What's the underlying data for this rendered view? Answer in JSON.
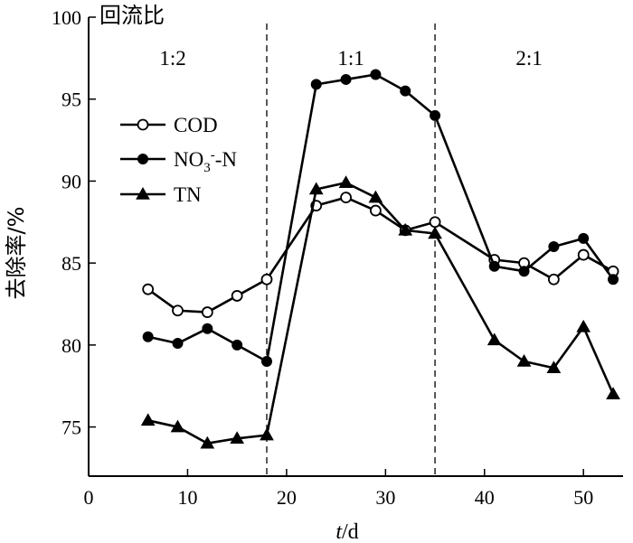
{
  "chart_data": {
    "type": "line",
    "xlabel": {
      "italic": "t",
      "rest": "/d"
    },
    "ylabel": "去除率/%",
    "annotation": "回流比",
    "xlim": [
      0,
      54
    ],
    "ylim": [
      72,
      100
    ],
    "x_ticks": [
      0,
      10,
      20,
      30,
      40,
      50
    ],
    "y_ticks": [
      75,
      80,
      85,
      90,
      95,
      100
    ],
    "grid": false,
    "legend_position": "left",
    "region_boundaries": [
      18,
      35
    ],
    "regions": [
      {
        "label": "1:2",
        "x_center": 8.5
      },
      {
        "label": "1:1",
        "x_center": 26.5
      },
      {
        "label": "2:1",
        "x_center": 44.5
      }
    ],
    "series": [
      {
        "name": "COD",
        "legend": {
          "main": "COD",
          "sub": "",
          "sup": "",
          "tail": ""
        },
        "marker": "circle-open",
        "x": [
          6,
          9,
          12,
          15,
          18,
          23,
          26,
          29,
          32,
          35,
          41,
          44,
          47,
          50,
          53
        ],
        "y": [
          83.4,
          82.1,
          82.0,
          83.0,
          84.0,
          88.5,
          89.0,
          88.2,
          87.0,
          87.5,
          85.2,
          85.0,
          84.0,
          85.5,
          84.5
        ]
      },
      {
        "name": "NO3--N",
        "legend": {
          "main": "NO",
          "sub": "3",
          "sup": "-",
          "tail": "-N"
        },
        "marker": "circle-filled",
        "x": [
          6,
          9,
          12,
          15,
          18,
          23,
          26,
          29,
          32,
          35,
          41,
          44,
          47,
          50,
          53
        ],
        "y": [
          80.5,
          80.1,
          81.0,
          80.0,
          79.0,
          95.9,
          96.2,
          96.5,
          95.5,
          94.0,
          84.8,
          84.5,
          86.0,
          86.5,
          84.0
        ]
      },
      {
        "name": "TN",
        "legend": {
          "main": "TN",
          "sub": "",
          "sup": "",
          "tail": ""
        },
        "marker": "triangle-filled",
        "x": [
          6,
          9,
          12,
          15,
          18,
          23,
          26,
          29,
          32,
          35,
          41,
          44,
          47,
          50,
          53
        ],
        "y": [
          75.4,
          75.0,
          74.0,
          74.3,
          74.5,
          89.5,
          89.9,
          89.0,
          87.0,
          86.8,
          80.3,
          79.0,
          78.6,
          81.1,
          77.0
        ]
      }
    ]
  }
}
